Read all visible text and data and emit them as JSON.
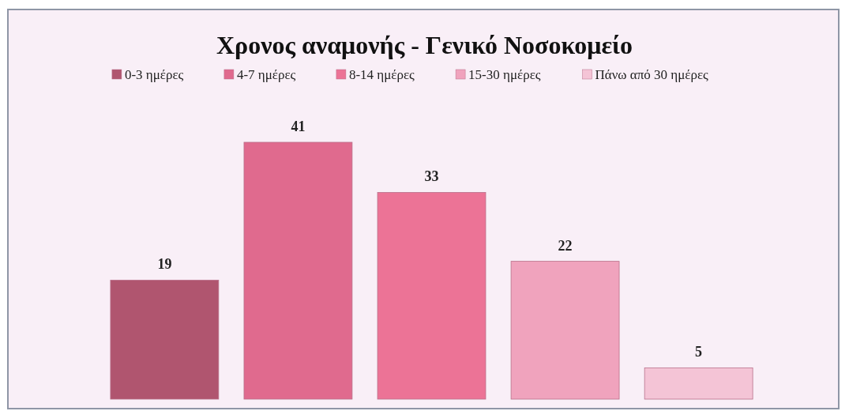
{
  "chart_data": {
    "type": "bar",
    "title": "Χρονος αναμονής - Γενικό Νοσοκομείο",
    "categories": [
      null,
      null,
      null,
      null,
      null
    ],
    "stacked": true,
    "series": [
      {
        "name": "0-3 ημέρες",
        "color": "#b0556f",
        "values": [
          19,
          null,
          null,
          null,
          null
        ]
      },
      {
        "name": "4-7 ημέρες",
        "color": "#e06a8e",
        "values": [
          null,
          41,
          null,
          null,
          null
        ]
      },
      {
        "name": "8-14 ημέρες",
        "color": "#ec7396",
        "values": [
          null,
          null,
          33,
          null,
          null
        ]
      },
      {
        "name": "15-30 ημέρες",
        "color": "#f0a3bd",
        "values": [
          null,
          null,
          null,
          22,
          null
        ]
      },
      {
        "name": "Πάνω από 30 ημέρες",
        "color": "#f4c4d6",
        "values": [
          null,
          null,
          null,
          null,
          5
        ]
      }
    ],
    "data_labels": true,
    "legend": "top"
  }
}
